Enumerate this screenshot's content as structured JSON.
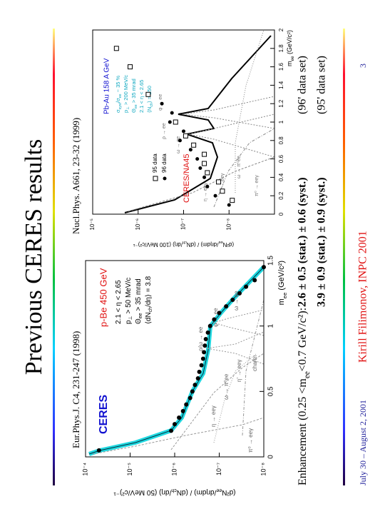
{
  "slide": {
    "title": "Previous CERES results",
    "footer": {
      "date": "July 30 – August 2, 2001",
      "author": "Kirill Filimonov, INPC 2001",
      "page": "3"
    }
  },
  "figures": [
    {
      "caption": "Eur.Phys.J. C4, 231-247 (1998)",
      "type": "scatter",
      "log_y": true,
      "x_label": [
        "m",
        "ee",
        " (GeV/c²)"
      ],
      "y_label": [
        "(d²N",
        "ee",
        "/dηdm) / (dN",
        "ch",
        "/dη)  (50 MeV/c²)⁻¹"
      ],
      "xlim": [
        0,
        1.5
      ],
      "xticks": [
        0,
        0.5,
        1,
        1.5
      ],
      "ylim": [
        1e-08,
        0.0001
      ],
      "yticks": [
        {
          "value": 0.0001,
          "label": "10⁻⁴"
        },
        {
          "value": 1e-05,
          "label": "10⁻⁵"
        },
        {
          "value": 1e-06,
          "label": "10⁻⁶"
        },
        {
          "value": 1e-07,
          "label": "10⁻⁷"
        },
        {
          "value": 1e-08,
          "label": "10⁻⁸"
        }
      ],
      "experiment": "CERES",
      "beam": "p-Be 450 GeV",
      "cuts": [
        [
          "2.1 < η < 2.65"
        ],
        [
          "p",
          "⊥",
          " > 50 MeV/c"
        ],
        [
          "Θ",
          "ee",
          " > 35 mrad"
        ],
        [
          "⟨dN",
          "ch",
          "/dη⟩ = 3.8"
        ]
      ],
      "channels": [
        "π⁰ → eeγ",
        "η → eeγ",
        "ω → π⁰ee",
        "η' → eeγ",
        "charm",
        "ρ/ω → ee",
        "φ → ee",
        "ω → ee"
      ],
      "series": [
        {
          "marker": "filled-circle",
          "color": "#000000",
          "x": [
            0.05,
            0.2,
            0.25,
            0.3,
            0.35,
            0.4,
            0.45,
            0.5,
            0.55,
            0.6,
            0.65,
            0.7,
            0.75,
            0.8,
            0.85,
            0.9,
            0.95,
            1.0,
            1.05,
            1.1,
            1.15,
            1.2,
            1.25,
            1.3,
            1.35,
            1.45
          ],
          "y": [
            5e-05,
            1.2e-06,
            1e-06,
            8e-07,
            6.5e-07,
            5.5e-07,
            4.5e-07,
            4e-07,
            3.5e-07,
            3e-07,
            2.8e-07,
            2.5e-07,
            2.3e-07,
            2.2e-07,
            2.1e-07,
            2e-07,
            1.8e-07,
            1.6e-07,
            1.3e-07,
            1e-07,
            7e-08,
            5e-08,
            3.5e-08,
            2.5e-08,
            1.6e-08,
            1e-08
          ]
        }
      ]
    },
    {
      "caption": "Nucl.Phys. A661, 23-32 (1999)",
      "type": "scatter",
      "log_y": true,
      "x_label": [
        "m",
        "ee",
        " (GeV/c²)"
      ],
      "y_label": [
        "(d²N",
        "ee",
        "/dηdm) / (dN",
        "ch",
        "/dη)  (100 MeV/c²)⁻¹"
      ],
      "xlim": [
        0,
        2
      ],
      "xticks": [
        0,
        0.2,
        0.4,
        0.6,
        0.8,
        1,
        1.2,
        1.4,
        1.6,
        1.8,
        2
      ],
      "ylim": [
        1e-09,
        1e-05
      ],
      "yticks": [
        {
          "value": 1e-05,
          "label": "10⁻⁵"
        },
        {
          "value": 1e-06,
          "label": "10⁻⁶"
        },
        {
          "value": 1e-07,
          "label": "10⁻⁷"
        },
        {
          "value": 1e-08,
          "label": "10⁻⁸"
        }
      ],
      "experiment": "CERES/NA45",
      "beam": "Pb-Au 158 A GeV",
      "cuts": [
        [
          "σ",
          "syst",
          "/σ",
          "ee",
          " ~ 35 %"
        ],
        [
          "p",
          "⊥",
          " > 200 MeV/c"
        ],
        [
          "Θ",
          "ee",
          " > 35 mrad"
        ],
        [
          "2.1 < η < 2.65"
        ],
        [
          "⟨N",
          "ch",
          "⟩ = 250"
        ]
      ],
      "channels": [
        "η → eeγ",
        "η' → eeγ",
        "ω → π⁰ee",
        "ρ → ee",
        "ω → ee",
        "φ → ee",
        "π⁰ → eeγ"
      ],
      "series": [
        {
          "name": "95 data",
          "marker": "open-square",
          "color": "#000000",
          "x": [
            0.15,
            0.25,
            0.35,
            0.45,
            0.55,
            0.65,
            0.75,
            0.85,
            1.0,
            1.3,
            1.6,
            1.8
          ],
          "y": [
            8.5e-09,
            1.4e-08,
            1.7e-08,
            3e-08,
            3.5e-08,
            3.5e-08,
            6e-08,
            9e-08,
            1.5e-07,
            6e-07,
            1.5e-06,
            3e-06
          ]
        },
        {
          "name": "96 data",
          "marker": "filled-circle",
          "color": "#000000",
          "x": [
            0.1,
            0.2,
            0.3,
            0.4,
            0.5,
            0.6,
            0.7,
            0.8,
            0.9,
            1.0,
            1.1,
            1.2
          ],
          "y": [
            1e-08,
            2e-08,
            3e-08,
            3.5e-08,
            4.3e-08,
            5e-08,
            7e-08,
            1.2e-07,
            1e-07,
            2e-07,
            1.8e-07,
            3e-07
          ]
        }
      ]
    }
  ],
  "enhancement": {
    "label": [
      "Enhancement (0.25 <m",
      "ee",
      "<0.7 GeV/c²):"
    ],
    "rows": [
      {
        "value": "2.6 ± 0.5 (stat.) ± 0.6 (syst.)",
        "set": "(96' data set)"
      },
      {
        "value": "3.9 ± 0.9 (stat.) ± 0.9 (syst.)",
        "set": "(95' data set)"
      }
    ]
  }
}
